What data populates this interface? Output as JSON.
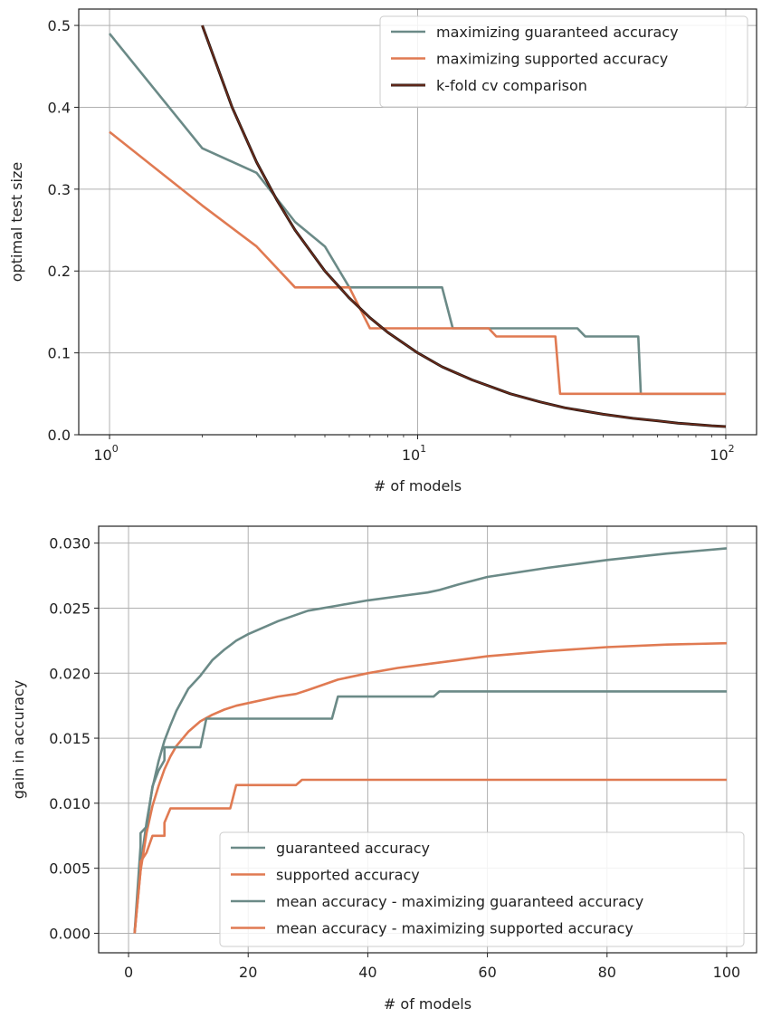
{
  "chart_data": [
    {
      "type": "line",
      "xscale": "log",
      "xlim": [
        1,
        100
      ],
      "ylim": [
        0,
        0.52
      ],
      "grid": true,
      "legend_position": "upper-right",
      "xlabel": "# of models",
      "ylabel": "optimal test size",
      "xticks": [
        {
          "value": 1,
          "base": "10",
          "exp": "0"
        },
        {
          "value": 10,
          "base": "10",
          "exp": "1"
        },
        {
          "value": 100,
          "base": "10",
          "exp": "2"
        }
      ],
      "yticks": [
        0.0,
        0.1,
        0.2,
        0.3,
        0.4,
        0.5
      ],
      "ytick_labels": [
        "0.0",
        "0.1",
        "0.2",
        "0.3",
        "0.4",
        "0.5"
      ],
      "series": [
        {
          "name": "maximizing guaranteed accuracy",
          "color": "#6b8a87",
          "x": [
            1,
            2,
            3,
            4,
            5,
            6,
            12,
            13,
            33,
            35,
            52,
            53,
            100
          ],
          "y": [
            0.49,
            0.35,
            0.32,
            0.26,
            0.23,
            0.18,
            0.18,
            0.13,
            0.13,
            0.12,
            0.12,
            0.05,
            0.05
          ]
        },
        {
          "name": "maximizing supported accuracy",
          "color": "#e07a52",
          "x": [
            1,
            2,
            3,
            4,
            5,
            6,
            7,
            17,
            18,
            28,
            29,
            100
          ],
          "y": [
            0.37,
            0.28,
            0.23,
            0.18,
            0.18,
            0.18,
            0.13,
            0.13,
            0.12,
            0.12,
            0.05,
            0.05
          ]
        },
        {
          "name": "k-fold cv comparison",
          "color": "#7a2e1c",
          "outline": "#2a1a14",
          "x": [
            2,
            2.5,
            3,
            3.5,
            4,
            5,
            6,
            7,
            8,
            10,
            12,
            15,
            20,
            25,
            30,
            40,
            50,
            60,
            70,
            80,
            90,
            100
          ],
          "y": [
            0.5,
            0.4,
            0.333,
            0.286,
            0.25,
            0.2,
            0.167,
            0.143,
            0.125,
            0.1,
            0.083,
            0.067,
            0.05,
            0.04,
            0.033,
            0.025,
            0.02,
            0.017,
            0.014,
            0.0125,
            0.011,
            0.01
          ]
        }
      ]
    },
    {
      "type": "line",
      "xlim": [
        -5,
        105
      ],
      "ylim": [
        -0.0015,
        0.0313
      ],
      "grid": true,
      "legend_position": "lower-right",
      "xlabel": "# of models",
      "ylabel": "gain in accuracy",
      "xticks": [
        0,
        20,
        40,
        60,
        80,
        100
      ],
      "xtick_labels": [
        "0",
        "20",
        "40",
        "60",
        "80",
        "100"
      ],
      "yticks": [
        0.0,
        0.005,
        0.01,
        0.015,
        0.02,
        0.025,
        0.03
      ],
      "ytick_labels": [
        "0.000",
        "0.005",
        "0.010",
        "0.015",
        "0.020",
        "0.025",
        "0.030"
      ],
      "series": [
        {
          "name": "guaranteed accuracy",
          "color": "#6b8a87",
          "x": [
            1,
            2,
            3,
            4,
            5,
            6,
            7,
            8,
            10,
            12,
            14,
            16,
            18,
            20,
            25,
            30,
            35,
            40,
            45,
            50,
            52,
            55,
            60,
            70,
            80,
            90,
            100
          ],
          "y": [
            0.0,
            0.0052,
            0.0085,
            0.0112,
            0.0132,
            0.0148,
            0.016,
            0.0171,
            0.0188,
            0.0198,
            0.021,
            0.0218,
            0.0225,
            0.023,
            0.024,
            0.0248,
            0.0252,
            0.0256,
            0.0259,
            0.0262,
            0.0264,
            0.0268,
            0.0274,
            0.0281,
            0.0287,
            0.0292,
            0.0296
          ]
        },
        {
          "name": "supported accuracy",
          "color": "#e07a52",
          "x": [
            1,
            2,
            3,
            4,
            5,
            6,
            7,
            8,
            10,
            12,
            14,
            16,
            18,
            20,
            25,
            28,
            30,
            35,
            40,
            45,
            50,
            55,
            60,
            70,
            80,
            90,
            100
          ],
          "y": [
            0.0,
            0.0048,
            0.0077,
            0.0098,
            0.0113,
            0.0126,
            0.0136,
            0.0144,
            0.0155,
            0.0163,
            0.0168,
            0.0172,
            0.0175,
            0.0177,
            0.0182,
            0.0184,
            0.0187,
            0.0195,
            0.02,
            0.0204,
            0.0207,
            0.021,
            0.0213,
            0.0217,
            0.022,
            0.0222,
            0.0223
          ]
        },
        {
          "name": "mean accuracy - maximizing guaranteed accuracy",
          "color": "#6b8a87",
          "x": [
            1,
            2,
            2,
            3,
            4,
            5,
            6,
            6,
            12,
            13,
            34,
            35,
            51,
            52,
            100
          ],
          "y": [
            0.0,
            0.0067,
            0.0077,
            0.0082,
            0.0113,
            0.0125,
            0.0133,
            0.0143,
            0.0143,
            0.0165,
            0.0165,
            0.0182,
            0.0182,
            0.0186,
            0.0186
          ]
        },
        {
          "name": "mean accuracy - maximizing supported accuracy",
          "color": "#e07a52",
          "x": [
            1,
            2,
            2,
            3,
            4,
            5,
            6,
            6,
            7,
            17,
            18,
            28,
            29,
            100
          ],
          "y": [
            0.0,
            0.0048,
            0.0055,
            0.0062,
            0.0075,
            0.0075,
            0.0075,
            0.0085,
            0.0096,
            0.0096,
            0.0114,
            0.0114,
            0.0118,
            0.0118
          ]
        }
      ]
    }
  ]
}
